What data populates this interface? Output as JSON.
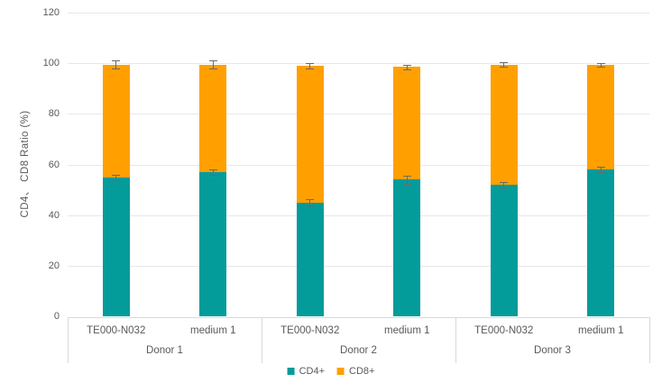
{
  "page": {
    "background": "#ffffff"
  },
  "colors": {
    "cd4_teal": "#049b9b",
    "cd8_orange": "#ffa000",
    "text_gray": "#595959",
    "gridline": "#e8e8e8",
    "axis_line": "#d9d9d9",
    "error_bar": "#6a6a6a"
  },
  "chart_data": {
    "type": "bar",
    "stacked": true,
    "title": "",
    "xlabel": "",
    "ylabel": "CD4、 CD8 Ratio (%)",
    "ylim": [
      0,
      120
    ],
    "yticks": [
      0,
      20,
      40,
      60,
      80,
      100,
      120
    ],
    "grid": true,
    "legend_position": "bottom",
    "group_size": 2,
    "groups": [
      "Donor 1",
      "Donor 2",
      "Donor 3"
    ],
    "categories": [
      "TE000-N032",
      "medium 1",
      "TE000-N032",
      "medium 1",
      "TE000-N032",
      "medium 1"
    ],
    "series": [
      {
        "name": "CD4+",
        "color": "#049b9b",
        "values": [
          55,
          57,
          45,
          54,
          52,
          58
        ],
        "errors": [
          1.0,
          1.2,
          1.2,
          1.5,
          1.2,
          1.0
        ]
      },
      {
        "name": "CD8+",
        "color": "#ffa000",
        "values": [
          44.5,
          42.5,
          54,
          44.5,
          47.5,
          41.5
        ],
        "errors": [
          1.5,
          1.5,
          1.2,
          0.8,
          0.8,
          0.7
        ]
      }
    ],
    "stack_totals": [
      99.5,
      99.5,
      99,
      98.5,
      99.5,
      99.5
    ]
  }
}
